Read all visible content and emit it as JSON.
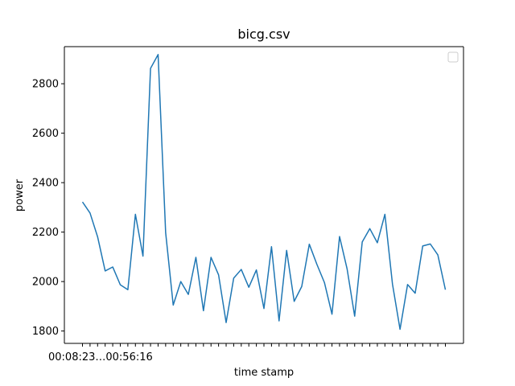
{
  "chart_data": {
    "type": "line",
    "title": "bicg.csv",
    "xlabel": "time stamp",
    "ylabel": "power",
    "ylim": [
      1750,
      2950
    ],
    "yticks": [
      1800,
      2000,
      2200,
      2400,
      2600,
      2800
    ],
    "grid": false,
    "legend": {
      "placement": "upper right",
      "entries": []
    },
    "x_tick_labels_overlapping": "00:08:23…00:56:16",
    "series": [
      {
        "color": "#1f77b4",
        "values": [
          2322,
          2277,
          2181,
          2043,
          2059,
          1987,
          1967,
          2272,
          2103,
          2862,
          2918,
          2198,
          1905,
          2000,
          1948,
          2098,
          1882,
          2098,
          2027,
          1834,
          2014,
          2049,
          1977,
          2047,
          1891,
          2141,
          1841,
          2126,
          1920,
          1980,
          2151,
          2070,
          1996,
          1868,
          2182,
          2051,
          1860,
          2160,
          2214,
          2157,
          2272,
          1990,
          1807,
          1988,
          1953,
          2144,
          2152,
          2108,
          1967
        ]
      }
    ]
  }
}
